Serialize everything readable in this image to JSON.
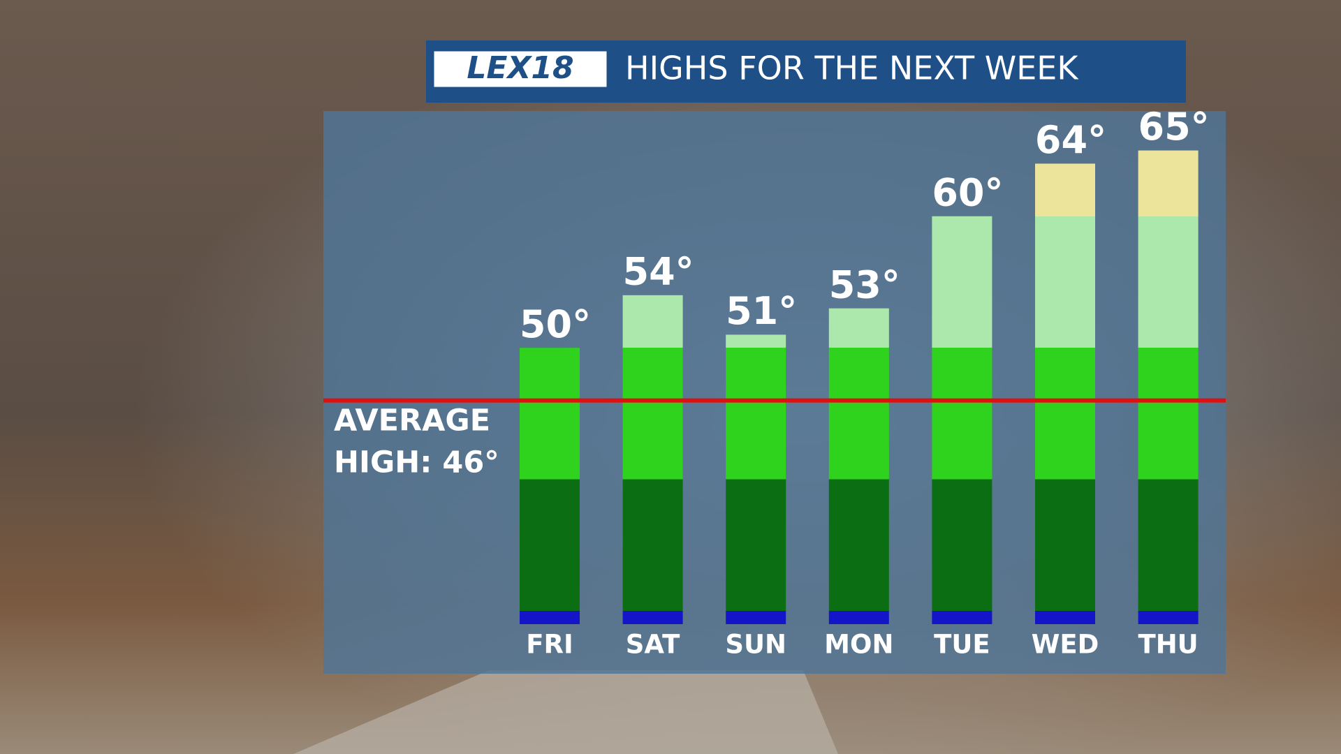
{
  "logo": "LEX18",
  "chart_data": {
    "type": "bar",
    "title": "HIGHS FOR THE NEXT WEEK",
    "categories": [
      "FRI",
      "SAT",
      "SUN",
      "MON",
      "TUE",
      "WED",
      "THU"
    ],
    "values": [
      50,
      54,
      51,
      53,
      60,
      64,
      65
    ],
    "value_labels": [
      "50°",
      "54°",
      "51°",
      "53°",
      "60°",
      "64°",
      "65°"
    ],
    "ylim": [
      29,
      68
    ],
    "color_bands": [
      {
        "from": 29,
        "to": 30,
        "color": "#1414c8"
      },
      {
        "from": 30,
        "to": 40,
        "color": "#0b6e12"
      },
      {
        "from": 40,
        "to": 50,
        "color": "#2fd21c"
      },
      {
        "from": 50,
        "to": 60,
        "color": "#ace8ac"
      },
      {
        "from": 60,
        "to": 70,
        "color": "#ebe49a"
      }
    ],
    "average_value": 46,
    "average_label": [
      "AVERAGE",
      "HIGH: 46°"
    ],
    "average_color": "#e01010"
  }
}
